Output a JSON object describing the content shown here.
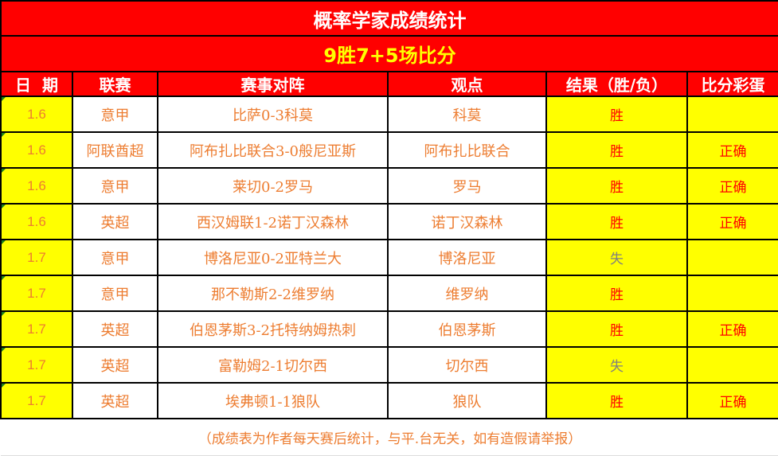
{
  "title": "概率学家成绩统计",
  "subtitle": "9胜7+5场比分",
  "headers": [
    "日  期",
    "联赛",
    "赛事对阵",
    "观点",
    "结果（胜/负）",
    "比分彩蛋"
  ],
  "rows": [
    {
      "date": "1.6",
      "league": "意甲",
      "match": "比萨0-3科莫",
      "view": "科莫",
      "result": "胜",
      "bonus": ""
    },
    {
      "date": "1.6",
      "league": "阿联酋超",
      "match": "阿布扎比联合3-0般尼亚斯",
      "view": "阿布扎比联合",
      "result": "胜",
      "bonus": "正确"
    },
    {
      "date": "1.6",
      "league": "意甲",
      "match": "莱切0-2罗马",
      "view": "罗马",
      "result": "胜",
      "bonus": "正确"
    },
    {
      "date": "1.6",
      "league": "英超",
      "match": "西汉姆联1-2诺丁汉森林",
      "view": "诺丁汉森林",
      "result": "胜",
      "bonus": "正确"
    },
    {
      "date": "1.7",
      "league": "意甲",
      "match": "博洛尼亚0-2亚特兰大",
      "view": "博洛尼亚",
      "result": "失",
      "bonus": ""
    },
    {
      "date": "1.7",
      "league": "意甲",
      "match": "那不勒斯2-2维罗纳",
      "view": "维罗纳",
      "result": "胜",
      "bonus": ""
    },
    {
      "date": "1.7",
      "league": "英超",
      "match": "伯恩茅斯3-2托特纳姆热刺",
      "view": "伯恩茅斯",
      "result": "胜",
      "bonus": "正确"
    },
    {
      "date": "1.7",
      "league": "英超",
      "match": "富勒姆2-1切尔西",
      "view": "切尔西",
      "result": "失",
      "bonus": ""
    },
    {
      "date": "1.7",
      "league": "英超",
      "match": "埃弗顿1-1狼队",
      "view": "狼队",
      "result": "胜",
      "bonus": "正确"
    }
  ],
  "footer": "（成绩表为作者每天赛后统计，与平.台无关，如有造假请举报）",
  "colors": {
    "header_bg": "#ff0000",
    "highlight": "#ffff00",
    "text": "#ed7d31",
    "win": "#ff0000",
    "lose": "#808080"
  }
}
